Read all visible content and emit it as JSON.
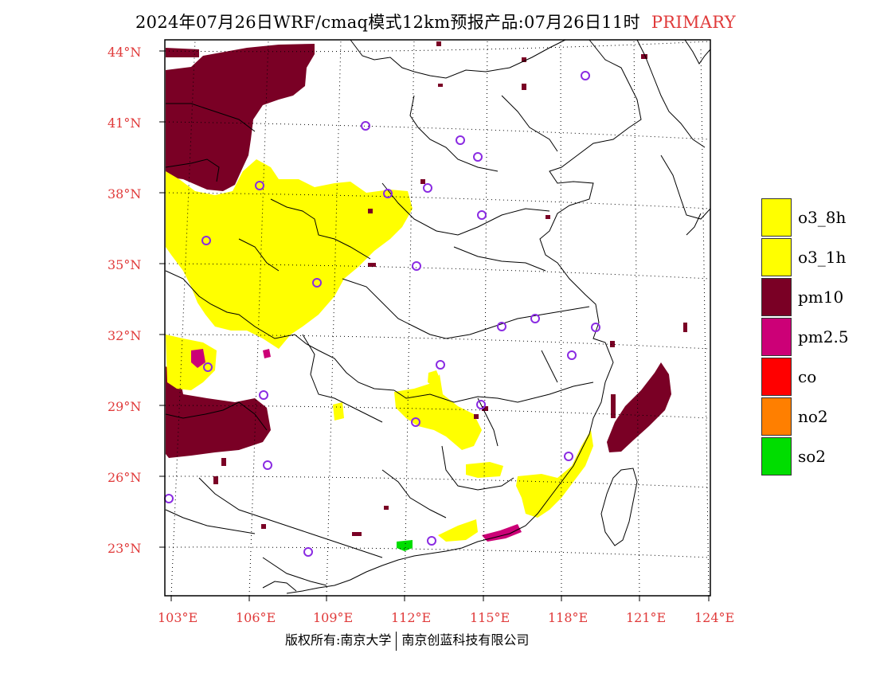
{
  "header": {
    "title": "2024年07月26日WRF/cmaq模式12km预报产品:07月26日11时",
    "tag": "PRIMARY"
  },
  "map": {
    "lat_labels": [
      "44°N",
      "41°N",
      "38°N",
      "35°N",
      "32°N",
      "29°N",
      "26°N",
      "23°N"
    ],
    "lon_labels": [
      "103°E",
      "106°E",
      "109°E",
      "112°E",
      "115°E",
      "118°E",
      "121°E",
      "124°E"
    ],
    "primary_pollutant_area_colors": {
      "o3": "#ffff00",
      "pm10": "#7a0025",
      "pm2_5": "#cc0077",
      "so2": "#00dd00"
    },
    "station_marker_color": "#8a2be2"
  },
  "legend": {
    "items": [
      {
        "label": "o3_8h",
        "color": "#ffff00"
      },
      {
        "label": "o3_1h",
        "color": "#ffff00"
      },
      {
        "label": "pm10",
        "color": "#7a0025"
      },
      {
        "label": "pm2.5",
        "color": "#cc0077"
      },
      {
        "label": "co",
        "color": "#ff0000"
      },
      {
        "label": "no2",
        "color": "#ff7f00"
      },
      {
        "label": "so2",
        "color": "#00dd00"
      }
    ]
  },
  "footer": {
    "left": "版权所有:南京大学",
    "right": "南京创蓝科技有限公司"
  }
}
